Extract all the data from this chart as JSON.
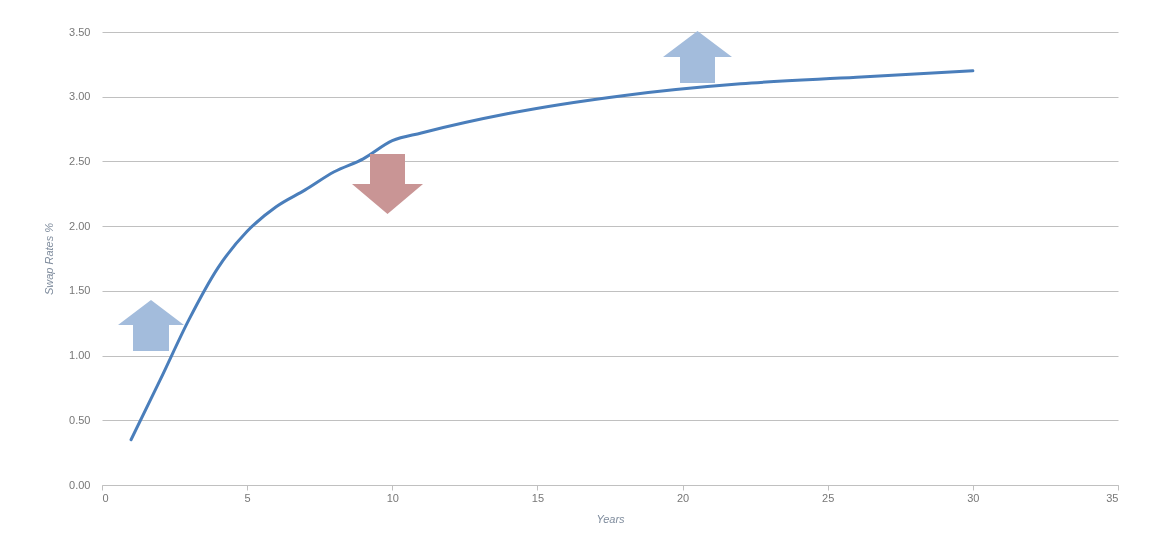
{
  "chart_data": {
    "type": "line",
    "xlabel": "Years",
    "ylabel": "Swap Rates %",
    "x": [
      1,
      2,
      3,
      4,
      5,
      6,
      7,
      8,
      9,
      10,
      11,
      14,
      18,
      22,
      26,
      30
    ],
    "series": [
      {
        "color": "#4a7ebb",
        "values": [
          0.35,
          0.81,
          1.28,
          1.68,
          1.96,
          2.15,
          2.28,
          2.42,
          2.52,
          2.66,
          2.72,
          2.87,
          3.01,
          3.1,
          3.15,
          3.2
        ]
      }
    ],
    "xlim": [
      0,
      35
    ],
    "xticks": [
      0,
      5,
      10,
      15,
      20,
      25,
      30,
      35
    ],
    "ylim": [
      0,
      3.5
    ],
    "yticks": [
      {
        "value": 0,
        "label": "0.00"
      },
      {
        "value": 0.5,
        "label": "0.50"
      },
      {
        "value": 1,
        "label": "1.00"
      },
      {
        "value": 1.5,
        "label": "1.50"
      },
      {
        "value": 2,
        "label": "2.00"
      },
      {
        "value": 2.5,
        "label": "2.50"
      },
      {
        "value": 3,
        "label": "3.00"
      },
      {
        "value": 3.5,
        "label": "3.50"
      }
    ],
    "grid": "y",
    "marker": "none",
    "line_style": "solid",
    "legend": false
  }
}
